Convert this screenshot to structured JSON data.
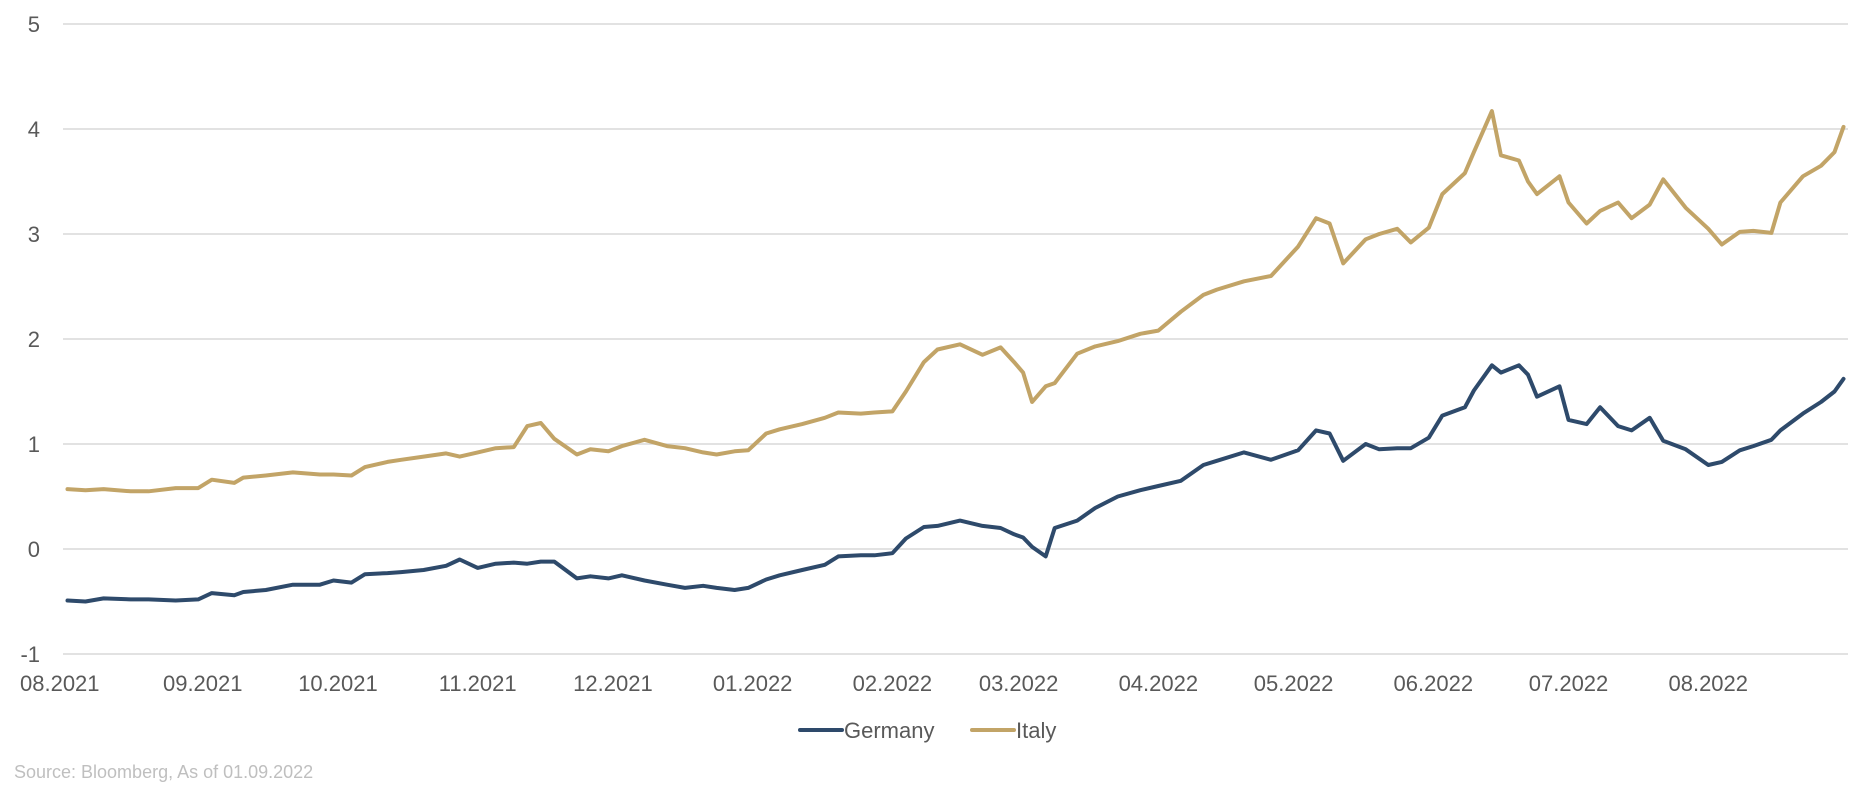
{
  "chart_data": {
    "type": "line",
    "x_ticks": [
      "08.2021",
      "09.2021",
      "10.2021",
      "11.2021",
      "12.2021",
      "01.2022",
      "02.2022",
      "03.2022",
      "04.2022",
      "05.2022",
      "06.2022",
      "07.2022",
      "08.2022"
    ],
    "ylim": [
      -1,
      5
    ],
    "y_ticks": [
      "-1",
      "0",
      "1",
      "2",
      "3",
      "4",
      "5"
    ],
    "grid": "horizontal",
    "legend_position": "bottom-center",
    "series": [
      {
        "name": "Germany",
        "color": "#2E4A6B",
        "points": [
          [
            "2021-08-02",
            -0.49
          ],
          [
            "2021-08-06",
            -0.5
          ],
          [
            "2021-08-10",
            -0.47
          ],
          [
            "2021-08-16",
            -0.48
          ],
          [
            "2021-08-20",
            -0.48
          ],
          [
            "2021-08-26",
            -0.49
          ],
          [
            "2021-08-31",
            -0.48
          ],
          [
            "2021-09-03",
            -0.42
          ],
          [
            "2021-09-08",
            -0.44
          ],
          [
            "2021-09-10",
            -0.41
          ],
          [
            "2021-09-15",
            -0.39
          ],
          [
            "2021-09-21",
            -0.34
          ],
          [
            "2021-09-27",
            -0.34
          ],
          [
            "2021-09-30",
            -0.3
          ],
          [
            "2021-10-04",
            -0.32
          ],
          [
            "2021-10-07",
            -0.24
          ],
          [
            "2021-10-12",
            -0.23
          ],
          [
            "2021-10-15",
            -0.22
          ],
          [
            "2021-10-20",
            -0.2
          ],
          [
            "2021-10-25",
            -0.16
          ],
          [
            "2021-10-28",
            -0.1
          ],
          [
            "2021-11-01",
            -0.18
          ],
          [
            "2021-11-05",
            -0.14
          ],
          [
            "2021-11-09",
            -0.13
          ],
          [
            "2021-11-12",
            -0.14
          ],
          [
            "2021-11-15",
            -0.12
          ],
          [
            "2021-11-18",
            -0.12
          ],
          [
            "2021-11-23",
            -0.28
          ],
          [
            "2021-11-26",
            -0.26
          ],
          [
            "2021-11-30",
            -0.28
          ],
          [
            "2021-12-03",
            -0.25
          ],
          [
            "2021-12-08",
            -0.3
          ],
          [
            "2021-12-13",
            -0.34
          ],
          [
            "2021-12-17",
            -0.37
          ],
          [
            "2021-12-21",
            -0.35
          ],
          [
            "2021-12-24",
            -0.37
          ],
          [
            "2021-12-28",
            -0.39
          ],
          [
            "2021-12-31",
            -0.37
          ],
          [
            "2022-01-04",
            -0.29
          ],
          [
            "2022-01-07",
            -0.25
          ],
          [
            "2022-01-12",
            -0.2
          ],
          [
            "2022-01-17",
            -0.15
          ],
          [
            "2022-01-20",
            -0.07
          ],
          [
            "2022-01-25",
            -0.06
          ],
          [
            "2022-01-28",
            -0.06
          ],
          [
            "2022-02-01",
            -0.04
          ],
          [
            "2022-02-04",
            0.1
          ],
          [
            "2022-02-08",
            0.21
          ],
          [
            "2022-02-11",
            0.22
          ],
          [
            "2022-02-16",
            0.27
          ],
          [
            "2022-02-21",
            0.22
          ],
          [
            "2022-02-25",
            0.2
          ],
          [
            "2022-02-28",
            0.14
          ],
          [
            "2022-03-02",
            0.11
          ],
          [
            "2022-03-04",
            0.02
          ],
          [
            "2022-03-07",
            -0.07
          ],
          [
            "2022-03-09",
            0.2
          ],
          [
            "2022-03-14",
            0.27
          ],
          [
            "2022-03-18",
            0.39
          ],
          [
            "2022-03-23",
            0.5
          ],
          [
            "2022-03-28",
            0.56
          ],
          [
            "2022-04-01",
            0.6
          ],
          [
            "2022-04-06",
            0.65
          ],
          [
            "2022-04-11",
            0.8
          ],
          [
            "2022-04-14",
            0.84
          ],
          [
            "2022-04-20",
            0.92
          ],
          [
            "2022-04-26",
            0.85
          ],
          [
            "2022-05-02",
            0.94
          ],
          [
            "2022-05-06",
            1.13
          ],
          [
            "2022-05-09",
            1.1
          ],
          [
            "2022-05-12",
            0.84
          ],
          [
            "2022-05-17",
            1.0
          ],
          [
            "2022-05-20",
            0.95
          ],
          [
            "2022-05-24",
            0.96
          ],
          [
            "2022-05-27",
            0.96
          ],
          [
            "2022-05-31",
            1.06
          ],
          [
            "2022-06-03",
            1.27
          ],
          [
            "2022-06-08",
            1.35
          ],
          [
            "2022-06-10",
            1.51
          ],
          [
            "2022-06-14",
            1.75
          ],
          [
            "2022-06-16",
            1.68
          ],
          [
            "2022-06-20",
            1.75
          ],
          [
            "2022-06-22",
            1.66
          ],
          [
            "2022-06-24",
            1.45
          ],
          [
            "2022-06-29",
            1.55
          ],
          [
            "2022-07-01",
            1.23
          ],
          [
            "2022-07-05",
            1.19
          ],
          [
            "2022-07-08",
            1.35
          ],
          [
            "2022-07-12",
            1.17
          ],
          [
            "2022-07-15",
            1.13
          ],
          [
            "2022-07-19",
            1.25
          ],
          [
            "2022-07-22",
            1.03
          ],
          [
            "2022-07-27",
            0.95
          ],
          [
            "2022-08-01",
            0.8
          ],
          [
            "2022-08-04",
            0.83
          ],
          [
            "2022-08-08",
            0.94
          ],
          [
            "2022-08-11",
            0.98
          ],
          [
            "2022-08-15",
            1.04
          ],
          [
            "2022-08-17",
            1.13
          ],
          [
            "2022-08-22",
            1.29
          ],
          [
            "2022-08-26",
            1.4
          ],
          [
            "2022-08-29",
            1.5
          ],
          [
            "2022-08-31",
            1.62
          ]
        ]
      },
      {
        "name": "Italy",
        "color": "#C2A467",
        "points": [
          [
            "2021-08-02",
            0.57
          ],
          [
            "2021-08-06",
            0.56
          ],
          [
            "2021-08-10",
            0.57
          ],
          [
            "2021-08-16",
            0.55
          ],
          [
            "2021-08-20",
            0.55
          ],
          [
            "2021-08-26",
            0.58
          ],
          [
            "2021-08-31",
            0.58
          ],
          [
            "2021-09-03",
            0.66
          ],
          [
            "2021-09-08",
            0.63
          ],
          [
            "2021-09-10",
            0.68
          ],
          [
            "2021-09-15",
            0.7
          ],
          [
            "2021-09-21",
            0.73
          ],
          [
            "2021-09-27",
            0.71
          ],
          [
            "2021-09-30",
            0.71
          ],
          [
            "2021-10-04",
            0.7
          ],
          [
            "2021-10-07",
            0.78
          ],
          [
            "2021-10-12",
            0.83
          ],
          [
            "2021-10-15",
            0.85
          ],
          [
            "2021-10-20",
            0.88
          ],
          [
            "2021-10-25",
            0.91
          ],
          [
            "2021-10-28",
            0.88
          ],
          [
            "2021-11-01",
            0.92
          ],
          [
            "2021-11-05",
            0.96
          ],
          [
            "2021-11-09",
            0.97
          ],
          [
            "2021-11-12",
            1.17
          ],
          [
            "2021-11-15",
            1.2
          ],
          [
            "2021-11-18",
            1.05
          ],
          [
            "2021-11-23",
            0.9
          ],
          [
            "2021-11-26",
            0.95
          ],
          [
            "2021-11-30",
            0.93
          ],
          [
            "2021-12-03",
            0.98
          ],
          [
            "2021-12-08",
            1.04
          ],
          [
            "2021-12-13",
            0.98
          ],
          [
            "2021-12-17",
            0.96
          ],
          [
            "2021-12-21",
            0.92
          ],
          [
            "2021-12-24",
            0.9
          ],
          [
            "2021-12-28",
            0.93
          ],
          [
            "2021-12-31",
            0.94
          ],
          [
            "2022-01-04",
            1.1
          ],
          [
            "2022-01-07",
            1.14
          ],
          [
            "2022-01-12",
            1.19
          ],
          [
            "2022-01-17",
            1.25
          ],
          [
            "2022-01-20",
            1.3
          ],
          [
            "2022-01-25",
            1.29
          ],
          [
            "2022-01-28",
            1.3
          ],
          [
            "2022-02-01",
            1.31
          ],
          [
            "2022-02-04",
            1.5
          ],
          [
            "2022-02-08",
            1.78
          ],
          [
            "2022-02-11",
            1.9
          ],
          [
            "2022-02-16",
            1.95
          ],
          [
            "2022-02-21",
            1.85
          ],
          [
            "2022-02-25",
            1.92
          ],
          [
            "2022-02-28",
            1.78
          ],
          [
            "2022-03-02",
            1.68
          ],
          [
            "2022-03-04",
            1.4
          ],
          [
            "2022-03-07",
            1.55
          ],
          [
            "2022-03-09",
            1.58
          ],
          [
            "2022-03-14",
            1.86
          ],
          [
            "2022-03-18",
            1.93
          ],
          [
            "2022-03-23",
            1.98
          ],
          [
            "2022-03-28",
            2.05
          ],
          [
            "2022-04-01",
            2.08
          ],
          [
            "2022-04-06",
            2.26
          ],
          [
            "2022-04-11",
            2.42
          ],
          [
            "2022-04-14",
            2.47
          ],
          [
            "2022-04-20",
            2.55
          ],
          [
            "2022-04-26",
            2.6
          ],
          [
            "2022-05-02",
            2.88
          ],
          [
            "2022-05-06",
            3.15
          ],
          [
            "2022-05-09",
            3.1
          ],
          [
            "2022-05-12",
            2.72
          ],
          [
            "2022-05-17",
            2.95
          ],
          [
            "2022-05-20",
            3.0
          ],
          [
            "2022-05-24",
            3.05
          ],
          [
            "2022-05-27",
            2.92
          ],
          [
            "2022-05-31",
            3.06
          ],
          [
            "2022-06-03",
            3.38
          ],
          [
            "2022-06-08",
            3.58
          ],
          [
            "2022-06-10",
            3.78
          ],
          [
            "2022-06-14",
            4.17
          ],
          [
            "2022-06-16",
            3.75
          ],
          [
            "2022-06-20",
            3.7
          ],
          [
            "2022-06-22",
            3.5
          ],
          [
            "2022-06-24",
            3.38
          ],
          [
            "2022-06-29",
            3.55
          ],
          [
            "2022-07-01",
            3.3
          ],
          [
            "2022-07-05",
            3.1
          ],
          [
            "2022-07-08",
            3.22
          ],
          [
            "2022-07-12",
            3.3
          ],
          [
            "2022-07-15",
            3.15
          ],
          [
            "2022-07-19",
            3.28
          ],
          [
            "2022-07-22",
            3.52
          ],
          [
            "2022-07-27",
            3.25
          ],
          [
            "2022-08-01",
            3.05
          ],
          [
            "2022-08-04",
            2.9
          ],
          [
            "2022-08-08",
            3.02
          ],
          [
            "2022-08-11",
            3.03
          ],
          [
            "2022-08-15",
            3.01
          ],
          [
            "2022-08-17",
            3.3
          ],
          [
            "2022-08-22",
            3.55
          ],
          [
            "2022-08-26",
            3.65
          ],
          [
            "2022-08-29",
            3.78
          ],
          [
            "2022-08-31",
            4.02
          ]
        ]
      }
    ]
  },
  "source": "Source: Bloomberg, As of 01.09.2022"
}
